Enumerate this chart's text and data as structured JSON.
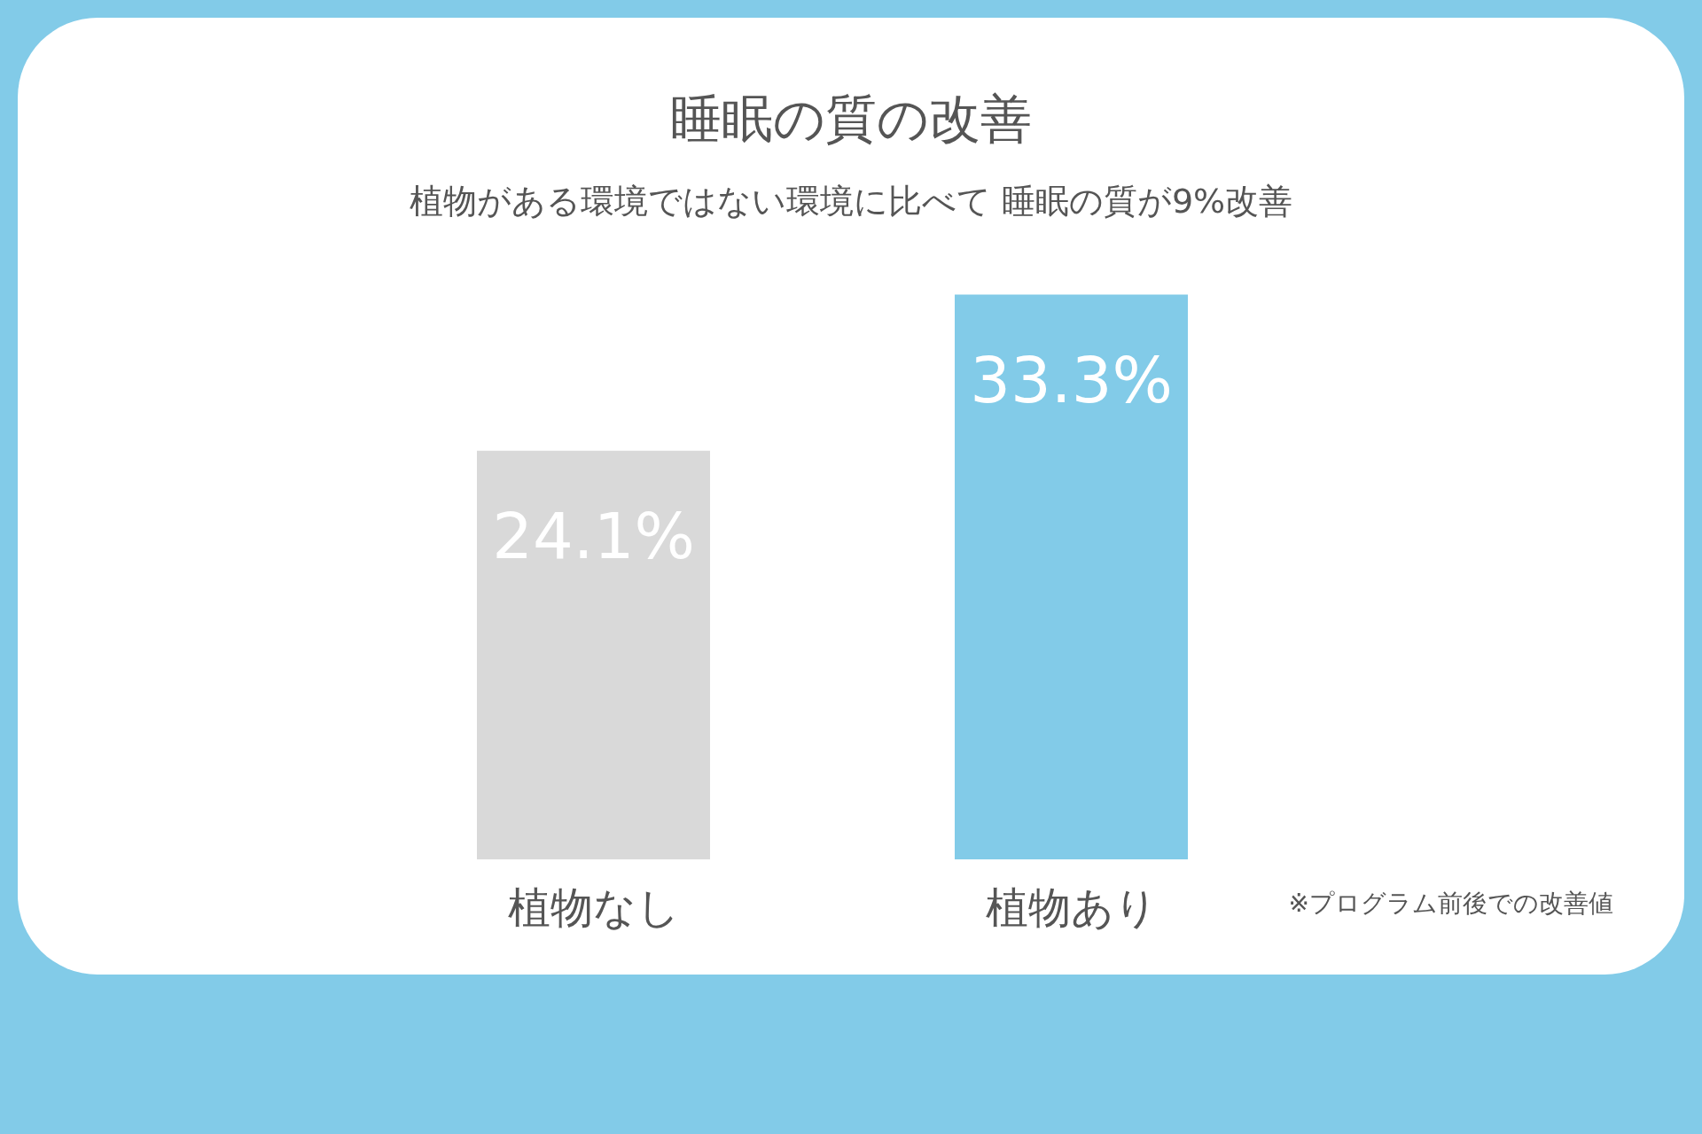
{
  "chart_data": {
    "type": "bar",
    "title": "睡眠の質の改善",
    "subtitle": "植物がある環境ではない環境に比べて 睡眠の質が9%改善",
    "categories": [
      "植物なし",
      "植物あり"
    ],
    "values": [
      24.1,
      33.3
    ],
    "colors": [
      "#d9d9d9",
      "#82cbe8"
    ],
    "value_labels": [
      "24.1%",
      "33.3%"
    ],
    "annotations": [
      "※プログラム前後での改善値"
    ]
  }
}
